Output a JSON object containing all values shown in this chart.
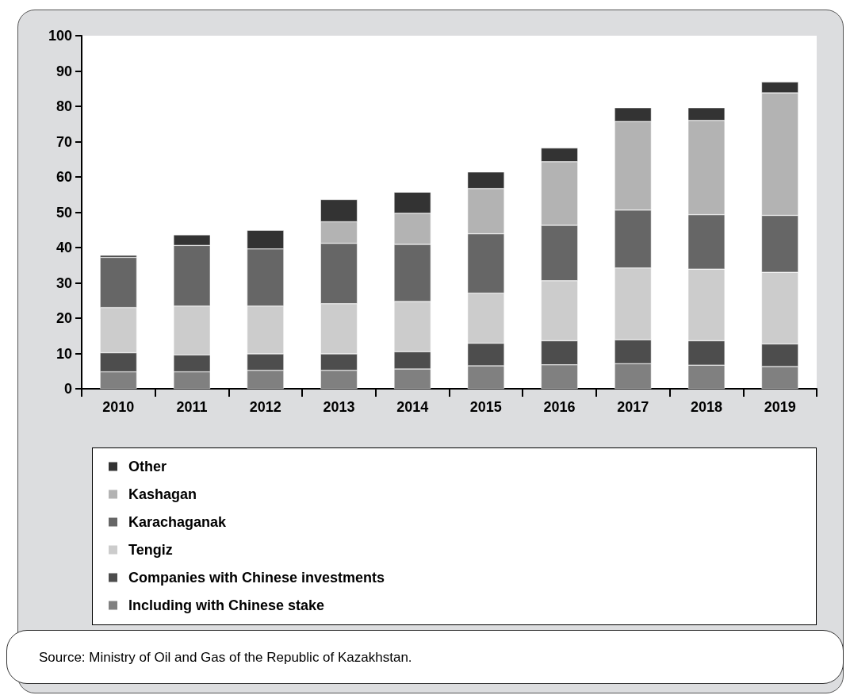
{
  "chart_data": {
    "type": "bar",
    "stacked": true,
    "categories": [
      "2010",
      "2011",
      "2012",
      "2013",
      "2014",
      "2015",
      "2016",
      "2017",
      "2018",
      "2019"
    ],
    "series": [
      {
        "name": "Including with Chinese stake",
        "color": "#808080",
        "values": [
          4.8,
          4.8,
          5.2,
          5.2,
          5.6,
          6.5,
          6.8,
          7.1,
          6.7,
          6.3
        ]
      },
      {
        "name": "Companies with Chinese investments",
        "color": "#4d4d4d",
        "values": [
          5.4,
          4.8,
          4.7,
          4.7,
          4.9,
          6.4,
          6.8,
          6.8,
          6.9,
          6.4
        ]
      },
      {
        "name": "Tengiz",
        "color": "#cccccc",
        "values": [
          12.8,
          13.8,
          13.5,
          14.2,
          14.2,
          14.2,
          17.0,
          20.3,
          20.3,
          20.3
        ]
      },
      {
        "name": "Karachaganak",
        "color": "#666666",
        "values": [
          14.2,
          17.2,
          16.2,
          17.1,
          16.2,
          16.8,
          15.7,
          16.4,
          15.4,
          16.1
        ]
      },
      {
        "name": "Kashagan",
        "color": "#b3b3b3",
        "values": [
          null,
          null,
          null,
          6.1,
          8.8,
          12.8,
          18.0,
          25.1,
          26.7,
          34.7
        ]
      },
      {
        "name": "Other",
        "color": "#333333",
        "values": [
          0.6,
          3.0,
          5.3,
          6.3,
          6.0,
          4.7,
          3.9,
          3.9,
          3.6,
          3.1
        ]
      }
    ],
    "ylim": [
      0,
      100
    ],
    "yticks": [
      0,
      10,
      20,
      30,
      40,
      50,
      60,
      70,
      80,
      90,
      100
    ],
    "grid": false,
    "legend": "bottom",
    "annotations": [
      "Source: Ministry of Oil and Gas of the Republic of Kazakhstan."
    ]
  }
}
